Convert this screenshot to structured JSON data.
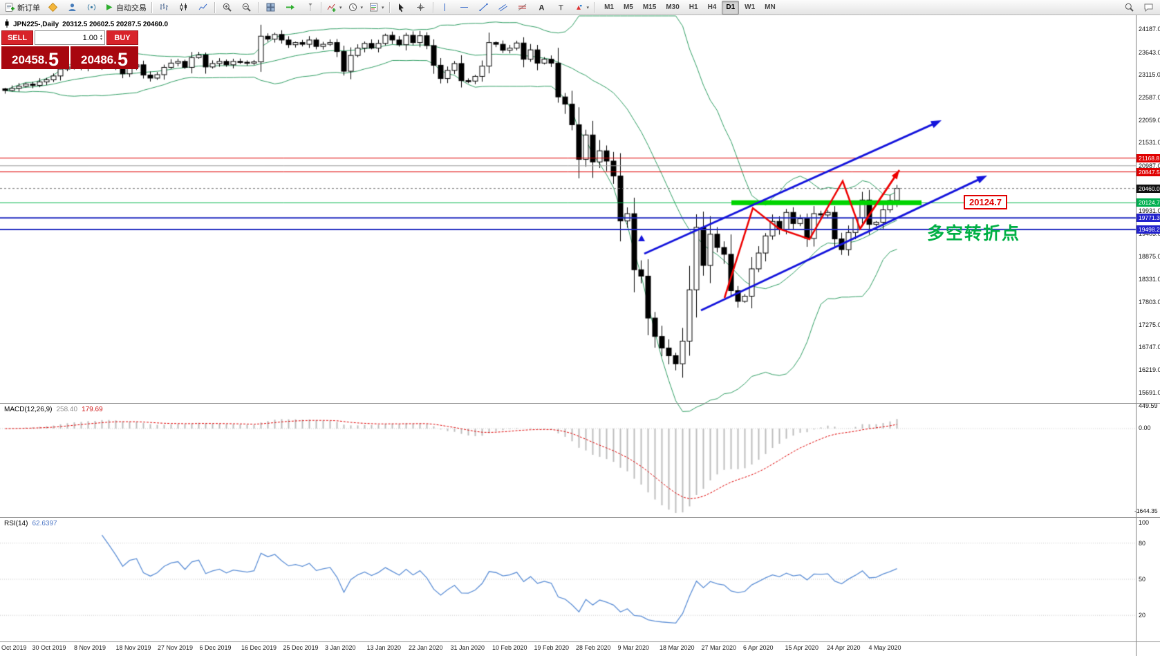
{
  "toolbar": {
    "new_order_label": "新订单",
    "autotrade_label": "自动交易",
    "timeframes": [
      "M1",
      "M5",
      "M15",
      "M30",
      "H1",
      "H4",
      "D1",
      "W1",
      "MN"
    ],
    "active_timeframe": "D1"
  },
  "chart": {
    "title": "JPN225-,Daily",
    "ohlc": "20312.5 20602.5 20287.5 20460.0"
  },
  "trade_panel": {
    "sell_label": "SELL",
    "buy_label": "BUY",
    "volume": "1.00",
    "sell_price_main": "20458.",
    "sell_price_frac": "5",
    "buy_price_main": "20486.",
    "buy_price_frac": "5"
  },
  "price_axis": {
    "labels": [
      "24187.0",
      "23643.0",
      "23115.0",
      "22587.0",
      "22059.0",
      "21531.0",
      "20987.0",
      "19931.0",
      "19403.0",
      "18875.0",
      "18331.0",
      "17803.0",
      "17275.0",
      "16747.0",
      "16219.0",
      "15691.0"
    ],
    "tags": [
      {
        "text": "21168.8",
        "price": 21168.8,
        "color": "#e00000"
      },
      {
        "text": "20847.5",
        "price": 20847.5,
        "color": "#e00000"
      },
      {
        "text": "20460.0",
        "price": 20460.0,
        "color": "#111111"
      },
      {
        "text": "20124.7",
        "price": 20124.7,
        "color": "#00b050"
      },
      {
        "text": "19771.3",
        "price": 19771.3,
        "color": "#2222cc"
      },
      {
        "text": "19498.2",
        "price": 19498.2,
        "color": "#2222cc"
      }
    ]
  },
  "annotations": {
    "level_label": "20124.7",
    "turning_point": "多空转折点"
  },
  "macd_panel": {
    "name": "MACD(12,26,9)",
    "value_main": "258.40",
    "value_signal": "179.69",
    "axis_max": "449.59",
    "axis_zero": "0.00",
    "axis_min": "-1644.35"
  },
  "rsi_panel": {
    "name": "RSI(14)",
    "value": "62.6397",
    "axis": [
      "100",
      "80",
      "50",
      "20"
    ]
  },
  "date_axis": [
    "Oct 2019",
    "30 Oct 2019",
    "8 Nov 2019",
    "18 Nov 2019",
    "27 Nov 2019",
    "6 Dec 2019",
    "16 Dec 2019",
    "25 Dec 2019",
    "3 Jan 2020",
    "13 Jan 2020",
    "22 Jan 2020",
    "31 Jan 2020",
    "10 Feb 2020",
    "19 Feb 2020",
    "28 Feb 2020",
    "9 Mar 2020",
    "18 Mar 2020",
    "27 Mar 2020",
    "6 Apr 2020",
    "15 Apr 2020",
    "24 Apr 2020",
    "4 May 2020"
  ],
  "chart_data": {
    "type": "candlestick",
    "symbol": "JPN225-",
    "timeframe": "Daily",
    "current_ohlc": {
      "open": 20312.5,
      "high": 20602.5,
      "low": 20287.5,
      "close": 20460.0
    },
    "bid": 20458.5,
    "ask": 20486.5,
    "price_axis_top": 24510,
    "price_axis_bottom": 15460,
    "closes": [
      22750,
      22800,
      22850,
      22900,
      22870,
      22950,
      23000,
      23090,
      23250,
      23300,
      23330,
      23280,
      23390,
      23330,
      23520,
      23420,
      23300,
      23140,
      23300,
      23350,
      23110,
      23040,
      23120,
      23290,
      23390,
      23430,
      23290,
      23520,
      23580,
      23300,
      23380,
      23430,
      23350,
      23430,
      23410,
      23390,
      23420,
      24020,
      23950,
      24060,
      23930,
      23820,
      23870,
      23830,
      23930,
      23780,
      23830,
      23870,
      23660,
      23200,
      23570,
      23740,
      23850,
      23740,
      23850,
      24040,
      23930,
      23820,
      24040,
      23870,
      24030,
      23800,
      23340,
      23030,
      23220,
      23380,
      22980,
      22970,
      23080,
      23320,
      23870,
      23830,
      23690,
      23740,
      23860,
      23480,
      23700,
      23390,
      23480,
      23390,
      22600,
      22430,
      21950,
      21140,
      21710,
      21080,
      21340,
      21100,
      20750,
      19700,
      19870,
      18560,
      18410,
      17430,
      17000,
      16730,
      16550,
      16360,
      16890,
      18090,
      19550,
      18660,
      19390,
      19080,
      18920,
      18070,
      17820,
      17940,
      18580,
      18950,
      19350,
      19690,
      19500,
      19900,
      19640,
      19750,
      19290,
      19870,
      19840,
      19900,
      19280,
      19030,
      19430,
      19770,
      20190,
      19620,
      19670,
      19960,
      20180,
      20460
    ],
    "levels": {
      "resistance_red": [
        21168.8,
        20847.5
      ],
      "gray": 20990.0,
      "current": 20460.0,
      "green_support": 20124.7,
      "blue_support": [
        19771.3,
        19498.2
      ]
    },
    "indicators": {
      "bollinger": {
        "period": 20,
        "deviation": 2
      },
      "macd": {
        "fast": 12,
        "slow": 26,
        "signal": 9,
        "current_main": 258.4,
        "current_signal": 179.69,
        "axis_range": [
          449.59,
          -1644.35
        ]
      },
      "rsi": {
        "period": 14,
        "current": 62.6397
      }
    }
  }
}
